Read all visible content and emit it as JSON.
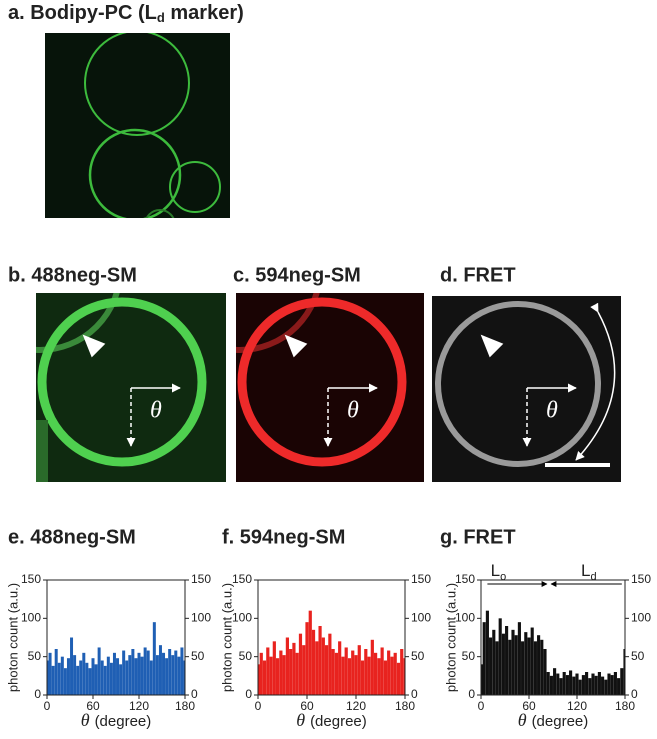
{
  "panels": {
    "a": {
      "label": "a. Bodipy-PC (L",
      "sub": "d",
      "after": " marker)"
    },
    "b": {
      "label": "b. 488neg-SM",
      "theta": "θ"
    },
    "c": {
      "label": "c. 594neg-SM",
      "theta": "θ"
    },
    "d": {
      "label": "d. FRET",
      "theta": "θ"
    }
  },
  "chart_data": [
    {
      "type": "bar",
      "title": "e. 488neg-SM",
      "ylabel": "photon count (a.u.)",
      "xlabel_symbol": "θ",
      "xlabel": "(degree)",
      "color": "#1f5fb4",
      "x": [
        0,
        4,
        8,
        12,
        16,
        20,
        24,
        28,
        32,
        36,
        40,
        44,
        48,
        52,
        56,
        60,
        64,
        68,
        72,
        76,
        80,
        84,
        88,
        92,
        96,
        100,
        104,
        108,
        112,
        116,
        120,
        124,
        128,
        132,
        136,
        140,
        144,
        148,
        152,
        156,
        160,
        164,
        168,
        172,
        176,
        180
      ],
      "values": [
        45,
        55,
        38,
        60,
        42,
        50,
        35,
        48,
        75,
        52,
        38,
        45,
        55,
        42,
        35,
        48,
        40,
        62,
        45,
        38,
        50,
        42,
        55,
        48,
        40,
        58,
        45,
        52,
        60,
        48,
        55,
        50,
        62,
        58,
        45,
        95,
        52,
        65,
        55,
        48,
        60,
        52,
        58,
        50,
        62,
        45
      ],
      "xlim": [
        0,
        180
      ],
      "xticks": [
        0,
        60,
        120,
        180
      ],
      "ylim": [
        0,
        150
      ],
      "yticks": [
        0,
        50,
        100,
        150
      ],
      "y2lim": [
        0,
        150
      ],
      "y2ticks": [
        0,
        50,
        100,
        150
      ]
    },
    {
      "type": "bar",
      "title": "f. 594neg-SM",
      "ylabel": "photon count (a.u.)",
      "xlabel_symbol": "θ",
      "xlabel": "(degree)",
      "color": "#e8231f",
      "x": [
        0,
        4,
        8,
        12,
        16,
        20,
        24,
        28,
        32,
        36,
        40,
        44,
        48,
        52,
        56,
        60,
        64,
        68,
        72,
        76,
        80,
        84,
        88,
        92,
        96,
        100,
        104,
        108,
        112,
        116,
        120,
        124,
        128,
        132,
        136,
        140,
        144,
        148,
        152,
        156,
        160,
        164,
        168,
        172,
        176,
        180
      ],
      "values": [
        40,
        55,
        45,
        62,
        50,
        70,
        48,
        58,
        52,
        75,
        60,
        68,
        55,
        80,
        65,
        95,
        110,
        85,
        70,
        90,
        75,
        65,
        80,
        60,
        55,
        70,
        50,
        62,
        48,
        58,
        52,
        65,
        45,
        60,
        50,
        72,
        55,
        48,
        62,
        45,
        58,
        50,
        55,
        42,
        60,
        48
      ],
      "xlim": [
        0,
        180
      ],
      "xticks": [
        0,
        60,
        120,
        180
      ],
      "ylim": [
        0,
        150
      ],
      "yticks": [
        0,
        50,
        100,
        150
      ],
      "y2lim": [
        0,
        150
      ],
      "y2ticks": [
        0,
        50,
        100,
        150
      ]
    },
    {
      "type": "bar",
      "title": "g. FRET",
      "ylabel": "photon count (a.u.)",
      "xlabel_symbol": "θ",
      "xlabel": "(degree)",
      "color": "#111111",
      "annotations": [
        {
          "text": "L",
          "sub": "o"
        },
        {
          "text": "L",
          "sub": "d"
        }
      ],
      "x": [
        0,
        4,
        8,
        12,
        16,
        20,
        24,
        28,
        32,
        36,
        40,
        44,
        48,
        52,
        56,
        60,
        64,
        68,
        72,
        76,
        80,
        84,
        88,
        92,
        96,
        100,
        104,
        108,
        112,
        116,
        120,
        124,
        128,
        132,
        136,
        140,
        144,
        148,
        152,
        156,
        160,
        164,
        168,
        172,
        176,
        180
      ],
      "values": [
        40,
        95,
        110,
        75,
        85,
        70,
        100,
        80,
        90,
        72,
        85,
        78,
        95,
        70,
        82,
        75,
        88,
        70,
        78,
        72,
        60,
        30,
        25,
        35,
        28,
        22,
        30,
        26,
        32,
        24,
        28,
        20,
        26,
        30,
        22,
        28,
        25,
        30,
        24,
        20,
        28,
        26,
        30,
        22,
        35,
        60
      ],
      "xlim": [
        0,
        180
      ],
      "xticks": [
        0,
        60,
        120,
        180
      ],
      "ylim": [
        0,
        150
      ],
      "yticks": [
        0,
        50,
        100,
        150
      ],
      "y2lim": [
        0,
        150
      ],
      "y2ticks": [
        0,
        50,
        100,
        150
      ]
    }
  ]
}
